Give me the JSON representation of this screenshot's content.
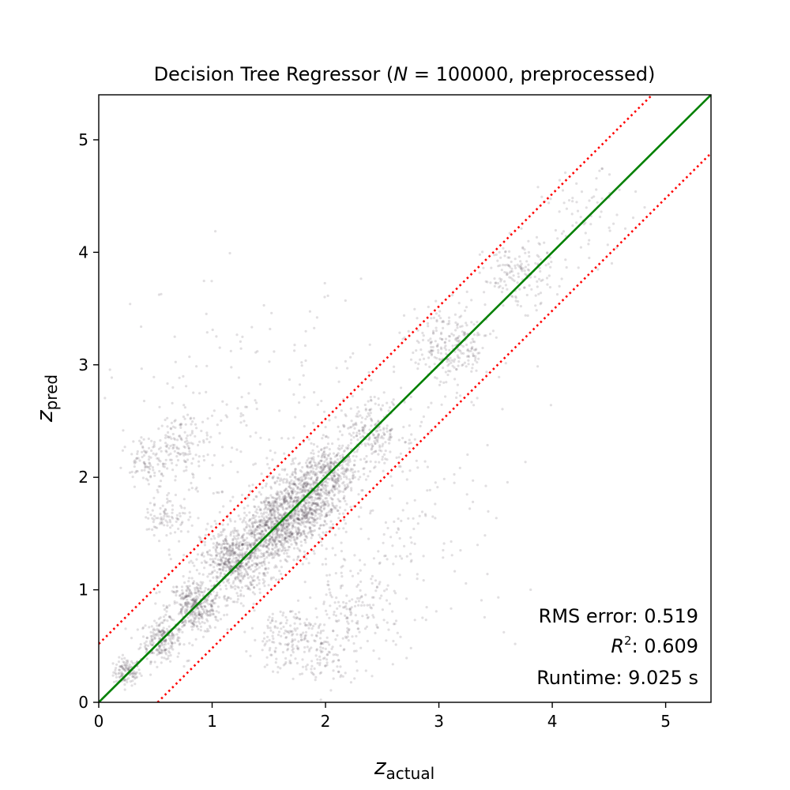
{
  "chart_data": {
    "type": "scatter",
    "title": {
      "prefix": "Decision Tree Regressor (",
      "n_symbol": "N",
      "suffix": " = 100000, preprocessed)"
    },
    "xlabel": {
      "base": "z",
      "sub": "actual"
    },
    "ylabel": {
      "base": "z",
      "sub": "pred"
    },
    "xlim": [
      0,
      5.4
    ],
    "ylim": [
      0,
      5.4
    ],
    "x_ticks": [
      "0",
      "1",
      "2",
      "3",
      "4",
      "5"
    ],
    "y_ticks": [
      "0",
      "1",
      "2",
      "3",
      "4",
      "5"
    ],
    "grid": false,
    "identity_line": {
      "slope": 1,
      "intercept": 0,
      "color": "#008000"
    },
    "outlier_bounds": {
      "offset": 0.519,
      "color": "#ff0000",
      "style": "dotted"
    },
    "point_color": "#2b1a2b",
    "point_clusters": [
      {
        "x": 0.25,
        "y": 0.27,
        "spread": 0.06,
        "count": 120
      },
      {
        "x": 0.55,
        "y": 0.55,
        "spread": 0.09,
        "count": 220
      },
      {
        "x": 0.85,
        "y": 0.85,
        "spread": 0.12,
        "count": 380
      },
      {
        "x": 1.2,
        "y": 1.25,
        "spread": 0.15,
        "count": 600
      },
      {
        "x": 1.55,
        "y": 1.55,
        "spread": 0.15,
        "count": 650
      },
      {
        "x": 1.8,
        "y": 1.8,
        "spread": 0.15,
        "count": 650
      },
      {
        "x": 2.05,
        "y": 2.05,
        "spread": 0.12,
        "count": 300
      },
      {
        "x": 2.4,
        "y": 2.4,
        "spread": 0.15,
        "count": 220
      },
      {
        "x": 3.1,
        "y": 3.15,
        "spread": 0.18,
        "count": 260
      },
      {
        "x": 3.7,
        "y": 3.8,
        "spread": 0.15,
        "count": 160
      },
      {
        "x": 4.3,
        "y": 4.3,
        "spread": 0.2,
        "count": 70
      },
      {
        "x": 0.45,
        "y": 2.15,
        "spread": 0.1,
        "count": 90
      },
      {
        "x": 0.75,
        "y": 2.3,
        "spread": 0.12,
        "count": 120
      },
      {
        "x": 0.6,
        "y": 1.65,
        "spread": 0.1,
        "count": 90
      },
      {
        "x": 1.65,
        "y": 0.58,
        "spread": 0.15,
        "count": 160
      },
      {
        "x": 2.2,
        "y": 0.75,
        "spread": 0.2,
        "count": 150
      },
      {
        "x": 2.0,
        "y": 0.42,
        "spread": 0.12,
        "count": 80
      },
      {
        "x": 2.5,
        "y": 1.6,
        "spread": 0.6,
        "count": 260
      },
      {
        "x": 1.2,
        "y": 2.5,
        "spread": 0.6,
        "count": 200
      }
    ],
    "annotations": {
      "rms": "RMS error: 0.519",
      "r2_symbol": "R",
      "r2_sup": "2",
      "r2_value": ": 0.609",
      "runtime": "Runtime: 9.025 s"
    }
  }
}
